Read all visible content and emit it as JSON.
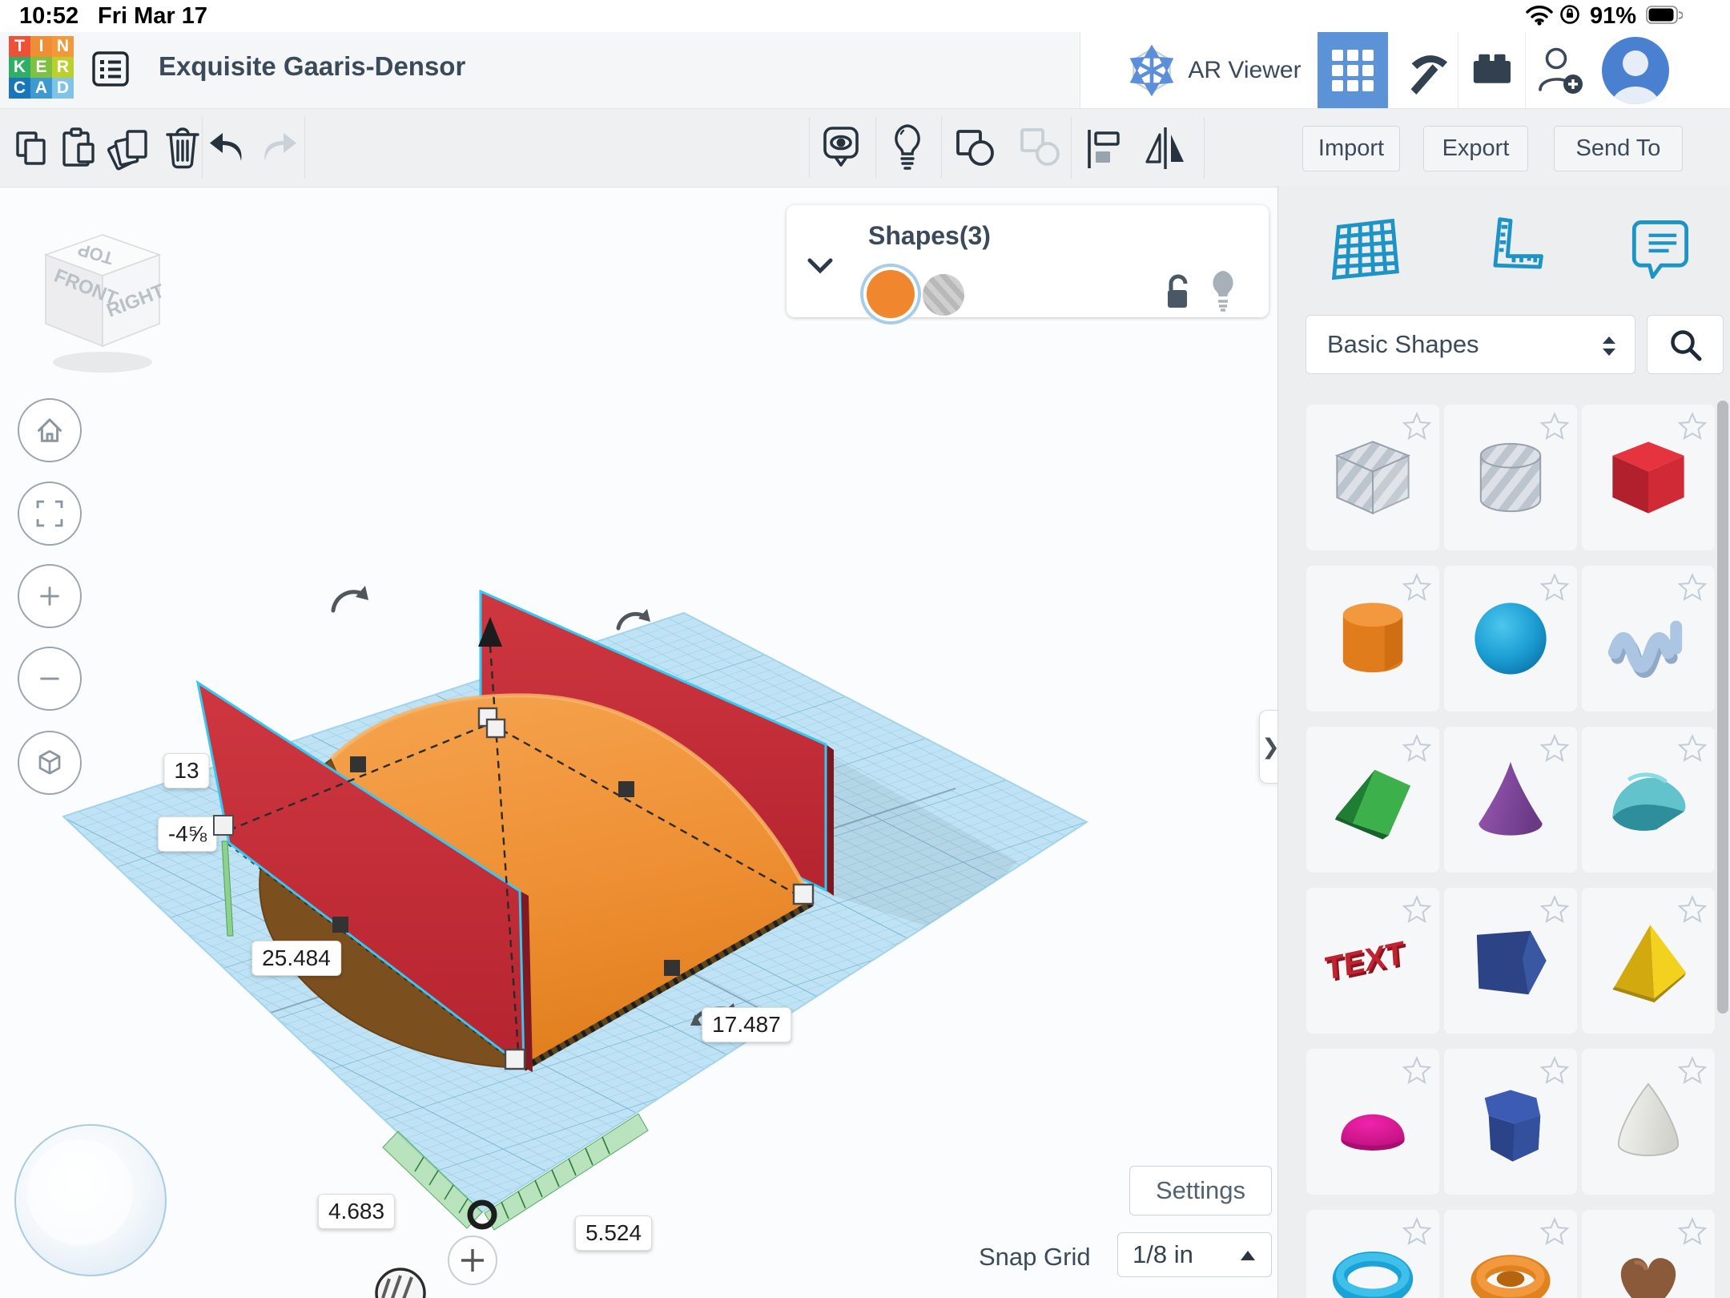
{
  "status_bar": {
    "time": "10:52",
    "date": "Fri Mar 17",
    "battery_percent": "91%"
  },
  "header": {
    "logo_letters": [
      "T",
      "I",
      "N",
      "K",
      "E",
      "R",
      "C",
      "A",
      "D"
    ],
    "logo_colors": [
      "#ef5038",
      "#f08e36",
      "#f2993b",
      "#2fae66",
      "#7cc142",
      "#bccf2f",
      "#1b75bb",
      "#3d9ad1",
      "#7fc3e8"
    ],
    "title": "Exquisite Gaaris-Densor",
    "ar_viewer_label": "AR Viewer"
  },
  "toolbar": {
    "import_label": "Import",
    "export_label": "Export",
    "send_to_label": "Send To"
  },
  "selection_panel": {
    "title": "Shapes(3)"
  },
  "view_cube": {
    "top": "TOP",
    "front": "FRONT",
    "right": "RIGHT"
  },
  "dimension_labels": {
    "height": "13",
    "elevation": "-4⅝",
    "width": "25.484",
    "depth": "17.487",
    "pos_a": "4.683",
    "pos_b": "5.524"
  },
  "footer": {
    "settings_label": "Settings",
    "snap_grid_label": "Snap Grid",
    "snap_grid_value": "1/8 in"
  },
  "sidebar": {
    "category_value": "Basic Shapes",
    "shape_icons": [
      "box-hole",
      "cylinder-hole",
      "box",
      "cylinder",
      "sphere",
      "scribble",
      "roof",
      "cone",
      "round-roof",
      "text",
      "wedge",
      "pyramid",
      "paraboloid",
      "polygon",
      "egg",
      "torus",
      "tube",
      "heart"
    ]
  },
  "colors": {
    "accent_blue": "#5b93d6",
    "sidebar_icon_blue": "#1d93c6",
    "slate_text": "#3b4a5a",
    "wall_red": "#c62f39",
    "shape_orange": "#ef8f33",
    "selection_cyan": "#35c8f2",
    "workplane_blue": "#bfe3f4"
  }
}
